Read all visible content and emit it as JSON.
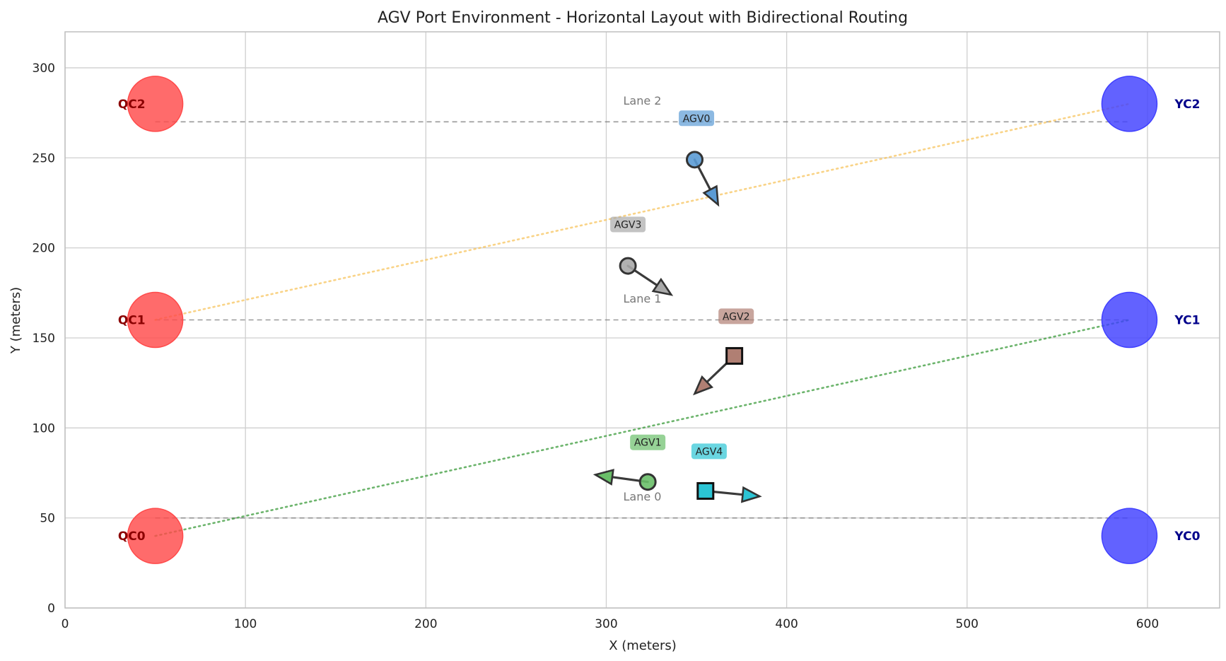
{
  "chart_data": {
    "type": "scatter",
    "title": "AGV Port Environment - Horizontal Layout with Bidirectional Routing",
    "xlabel": "X (meters)",
    "ylabel": "Y (meters)",
    "xlim": [
      0,
      640
    ],
    "ylim": [
      0,
      320
    ],
    "xticks": [
      0,
      100,
      200,
      300,
      400,
      500,
      600
    ],
    "yticks": [
      0,
      50,
      100,
      150,
      200,
      250,
      300
    ],
    "grid": true,
    "quay_cranes": [
      {
        "label": "QC0",
        "x": 50,
        "y": 40,
        "color": "#ff4a4a",
        "label_color": "#8b0000"
      },
      {
        "label": "QC1",
        "x": 50,
        "y": 160,
        "color": "#ff4a4a",
        "label_color": "#8b0000"
      },
      {
        "label": "QC2",
        "x": 50,
        "y": 280,
        "color": "#ff4a4a",
        "label_color": "#8b0000"
      }
    ],
    "yard_cranes": [
      {
        "label": "YC0",
        "x": 590,
        "y": 40,
        "color": "#4040ff",
        "label_color": "#00008b"
      },
      {
        "label": "YC1",
        "x": 590,
        "y": 160,
        "color": "#4040ff",
        "label_color": "#00008b"
      },
      {
        "label": "YC2",
        "x": 590,
        "y": 280,
        "color": "#4040ff",
        "label_color": "#00008b"
      }
    ],
    "lanes": [
      {
        "label": "Lane 0",
        "y": 50,
        "x_start": 50,
        "x_end": 590,
        "label_x": 320,
        "label_y": 62
      },
      {
        "label": "Lane 1",
        "y": 160,
        "x_start": 50,
        "x_end": 590,
        "label_x": 320,
        "label_y": 172
      },
      {
        "label": "Lane 2",
        "y": 270,
        "x_start": 50,
        "x_end": 590,
        "label_x": 320,
        "label_y": 282
      }
    ],
    "routes": [
      {
        "from": [
          50,
          160
        ],
        "to": [
          590,
          280
        ],
        "color": "#f7c55f"
      },
      {
        "from": [
          50,
          40
        ],
        "to": [
          590,
          160
        ],
        "color": "#3b9b3b"
      }
    ],
    "agvs": [
      {
        "label": "AGV0",
        "x": 349,
        "y": 249,
        "marker": "circle",
        "color": "#5b9bd5",
        "arrow_to": [
          362,
          224
        ],
        "tag_x": 350,
        "tag_y": 272
      },
      {
        "label": "AGV1",
        "x": 323,
        "y": 70,
        "marker": "circle",
        "color": "#6abf69",
        "arrow_to": [
          294,
          74
        ],
        "tag_x": 323,
        "tag_y": 92
      },
      {
        "label": "AGV2",
        "x": 371,
        "y": 140,
        "marker": "square",
        "color": "#b07f73",
        "arrow_to": [
          349,
          119
        ],
        "tag_x": 372,
        "tag_y": 162
      },
      {
        "label": "AGV3",
        "x": 312,
        "y": 190,
        "marker": "circle",
        "color": "#a9a9a9",
        "arrow_to": [
          336,
          174
        ],
        "tag_x": 312,
        "tag_y": 213
      },
      {
        "label": "AGV4",
        "x": 355,
        "y": 65,
        "marker": "square",
        "color": "#2bc4d4",
        "arrow_to": [
          385,
          62
        ],
        "tag_x": 357,
        "tag_y": 87
      }
    ]
  }
}
